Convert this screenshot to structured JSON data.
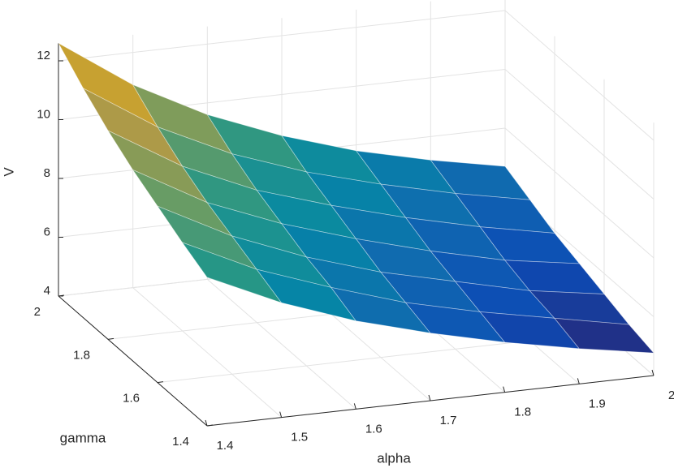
{
  "chart_data": {
    "type": "surface",
    "xlabel": "alpha",
    "ylabel": "gamma",
    "zlabel": "V",
    "x": [
      1.4,
      1.5,
      1.6,
      1.7,
      1.8,
      1.9,
      2
    ],
    "y": [
      1.4,
      1.5,
      1.6,
      1.7,
      1.8,
      1.9,
      2
    ],
    "z": [
      [
        9.05,
        7.9,
        7.0,
        6.3,
        5.7,
        5.2,
        4.77
      ],
      [
        9.5,
        8.3,
        7.4,
        6.6,
        6.0,
        5.5,
        5.0
      ],
      [
        10.0,
        8.7,
        7.7,
        6.9,
        6.3,
        5.7,
        5.3
      ],
      [
        10.5,
        9.1,
        8.1,
        7.3,
        6.6,
        6.0,
        5.6
      ],
      [
        11.1,
        9.6,
        8.5,
        7.7,
        7.0,
        6.4,
        5.9
      ],
      [
        11.8,
        10.2,
        9.0,
        8.1,
        7.4,
        6.8,
        6.3
      ],
      [
        12.6,
        10.9,
        9.6,
        8.6,
        7.8,
        7.2,
        6.7
      ]
    ],
    "xlim": [
      1.4,
      2
    ],
    "ylim": [
      1.4,
      2
    ],
    "zlim": [
      4,
      12.6
    ],
    "xticks": [
      1.4,
      1.5,
      1.6,
      1.7,
      1.8,
      1.9,
      2
    ],
    "yticks": [
      1.4,
      1.6,
      1.8,
      2
    ],
    "zticks": [
      4,
      6,
      8,
      10,
      12
    ],
    "grid": true,
    "colormap": [
      "#352a87",
      "#0f5cdd",
      "#1481d6",
      "#06a4ca",
      "#2eb7a4",
      "#87bf77",
      "#d1bb59",
      "#fec832",
      "#f9fb0e"
    ]
  }
}
